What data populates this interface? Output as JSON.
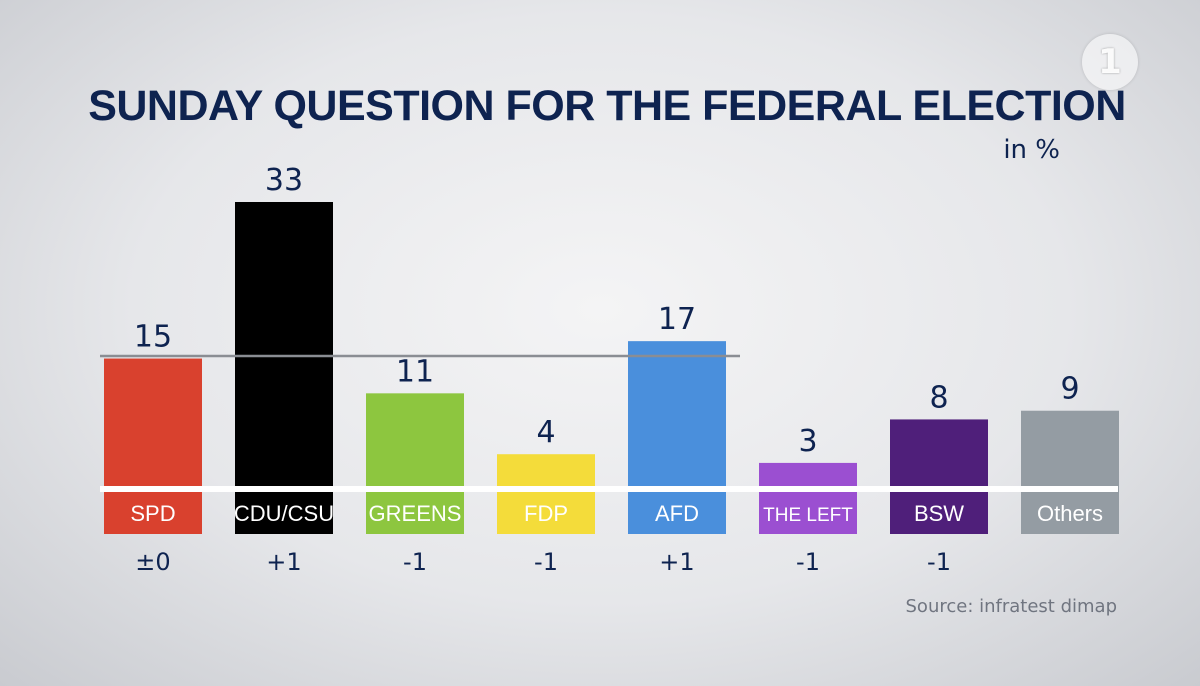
{
  "broadcaster_logo": "1",
  "chart_data": {
    "type": "bar",
    "title": "SUNDAY QUESTION FOR THE FEDERAL ELECTION",
    "subtitle": "in %",
    "categories": [
      "SPD",
      "CDU/CSU",
      "GREENS",
      "FDP",
      "AFD",
      "THE LEFT",
      "BSW",
      "Others"
    ],
    "values": [
      15,
      33,
      11,
      4,
      17,
      3,
      8,
      9
    ],
    "changes": [
      "±0",
      "+1",
      "-1",
      "-1",
      "+1",
      "-1",
      "-1",
      ""
    ],
    "colors": [
      "#d9412e",
      "#000000",
      "#8dc63f",
      "#f4dc3a",
      "#4a8fdc",
      "#9b4fd1",
      "#4f1f7a",
      "#949ca3"
    ],
    "label_colors": [
      "#ffffff",
      "#ffffff",
      "#ffffff",
      "#ffffff",
      "#ffffff",
      "#ffffff",
      "#ffffff",
      "#ffffff"
    ],
    "previous_line_value": 15,
    "source": "Source: infratest dimap",
    "ylim": [
      0,
      33
    ],
    "xlabel": "",
    "ylabel": ""
  }
}
